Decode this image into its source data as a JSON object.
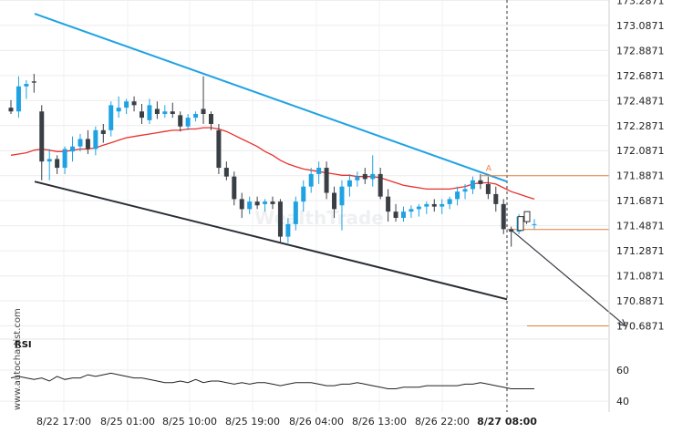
{
  "chart_data": {
    "type": "candlestick",
    "brand": "www.autochartist.com",
    "watermark": "WealthTrade",
    "y_ticks": [
      "173.2871",
      "173.0871",
      "172.8871",
      "172.6871",
      "172.4871",
      "172.2871",
      "172.0871",
      "171.8871",
      "171.6871",
      "171.4871",
      "171.2871",
      "171.0871",
      "170.8871",
      "170.6871"
    ],
    "x_ticks": [
      "8/22 17:00",
      "8/25 01:00",
      "8/25 10:00",
      "8/25 19:00",
      "8/26 04:00",
      "8/26 13:00",
      "8/26 22:00",
      "8/27 08:00"
    ],
    "price_range": [
      170.64,
      173.29
    ],
    "rsi": {
      "title": "RSI",
      "ticks": [
        "60",
        "40"
      ],
      "range": [
        33,
        80
      ]
    },
    "levels": {
      "resistance": 171.8871,
      "current": 171.4571,
      "target": 170.6871
    },
    "point_label": "A",
    "colors": {
      "bull": "#1ea2e3",
      "bear": "#3a3f46",
      "ma": "#e8312d",
      "upper_trend": "#1ea2e3",
      "lower_trend": "#2a2f35",
      "level": "#e97c3c",
      "arrow": "#3a3f46",
      "rsi": "#222222"
    },
    "candles": [
      [
        172.43,
        172.49,
        172.38,
        172.4
      ],
      [
        172.4,
        172.68,
        172.35,
        172.6
      ],
      [
        172.6,
        172.65,
        172.5,
        172.62
      ],
      [
        172.64,
        172.7,
        172.55,
        172.63
      ],
      [
        172.4,
        172.45,
        171.85,
        172.0
      ],
      [
        172.0,
        172.1,
        171.85,
        172.02
      ],
      [
        172.02,
        172.05,
        171.9,
        171.95
      ],
      [
        171.95,
        172.12,
        171.9,
        172.1
      ],
      [
        172.08,
        172.2,
        172.0,
        172.12
      ],
      [
        172.12,
        172.22,
        172.08,
        172.18
      ],
      [
        172.18,
        172.25,
        172.06,
        172.1
      ],
      [
        172.1,
        172.28,
        172.05,
        172.25
      ],
      [
        172.25,
        172.3,
        172.15,
        172.22
      ],
      [
        172.25,
        172.48,
        172.2,
        172.45
      ],
      [
        172.4,
        172.52,
        172.35,
        172.43
      ],
      [
        172.43,
        172.5,
        172.38,
        172.48
      ],
      [
        172.48,
        172.52,
        172.4,
        172.45
      ],
      [
        172.4,
        172.46,
        172.3,
        172.35
      ],
      [
        172.33,
        172.5,
        172.3,
        172.45
      ],
      [
        172.42,
        172.48,
        172.34,
        172.38
      ],
      [
        172.38,
        172.45,
        172.35,
        172.4
      ],
      [
        172.4,
        172.47,
        172.35,
        172.38
      ],
      [
        172.37,
        172.4,
        172.24,
        172.28
      ],
      [
        172.28,
        172.38,
        172.25,
        172.35
      ],
      [
        172.35,
        172.4,
        172.32,
        172.38
      ],
      [
        172.42,
        172.68,
        172.3,
        172.38
      ],
      [
        172.38,
        172.4,
        172.25,
        172.3
      ],
      [
        172.25,
        172.3,
        171.9,
        171.95
      ],
      [
        171.95,
        172.0,
        171.85,
        171.88
      ],
      [
        171.88,
        171.92,
        171.65,
        171.7
      ],
      [
        171.7,
        171.75,
        171.55,
        171.62
      ],
      [
        171.62,
        171.72,
        171.58,
        171.68
      ],
      [
        171.68,
        171.72,
        171.62,
        171.65
      ],
      [
        171.66,
        171.7,
        171.6,
        171.68
      ],
      [
        171.68,
        171.72,
        171.62,
        171.66
      ],
      [
        171.68,
        171.7,
        171.35,
        171.4
      ],
      [
        171.4,
        171.55,
        171.35,
        171.5
      ],
      [
        171.5,
        171.72,
        171.45,
        171.68
      ],
      [
        171.68,
        171.85,
        171.6,
        171.8
      ],
      [
        171.8,
        171.95,
        171.75,
        171.9
      ],
      [
        171.9,
        172.0,
        171.82,
        171.95
      ],
      [
        171.95,
        172.0,
        171.7,
        171.75
      ],
      [
        171.75,
        171.8,
        171.55,
        171.62
      ],
      [
        171.65,
        171.85,
        171.45,
        171.8
      ],
      [
        171.8,
        171.9,
        171.72,
        171.85
      ],
      [
        171.85,
        171.92,
        171.8,
        171.88
      ],
      [
        171.9,
        171.95,
        171.82,
        171.86
      ],
      [
        171.86,
        172.05,
        171.8,
        171.9
      ],
      [
        171.9,
        171.95,
        171.7,
        171.72
      ],
      [
        171.72,
        171.78,
        171.52,
        171.6
      ],
      [
        171.6,
        171.66,
        171.52,
        171.55
      ],
      [
        171.55,
        171.64,
        171.52,
        171.6
      ],
      [
        171.6,
        171.65,
        171.55,
        171.62
      ],
      [
        171.62,
        171.66,
        171.56,
        171.64
      ],
      [
        171.64,
        171.68,
        171.58,
        171.66
      ],
      [
        171.66,
        171.7,
        171.6,
        171.64
      ],
      [
        171.64,
        171.7,
        171.58,
        171.66
      ],
      [
        171.66,
        171.72,
        171.62,
        171.7
      ],
      [
        171.7,
        171.8,
        171.65,
        171.76
      ],
      [
        171.76,
        171.82,
        171.7,
        171.78
      ],
      [
        171.78,
        171.88,
        171.74,
        171.85
      ],
      [
        171.85,
        171.9,
        171.78,
        171.82
      ],
      [
        171.82,
        171.88,
        171.7,
        171.74
      ],
      [
        171.74,
        171.8,
        171.6,
        171.66
      ],
      [
        171.66,
        171.7,
        171.42,
        171.46
      ],
      [
        171.46,
        171.48,
        171.32,
        171.44
      ],
      [
        171.44,
        171.58,
        171.42,
        171.56
      ],
      [
        171.56,
        171.6,
        171.5,
        171.53
      ],
      [
        171.5,
        171.54,
        171.46,
        171.5
      ]
    ],
    "ma": [
      172.05,
      172.06,
      172.07,
      172.09,
      172.1,
      172.09,
      172.08,
      172.08,
      172.09,
      172.1,
      172.1,
      172.11,
      172.13,
      172.15,
      172.17,
      172.19,
      172.2,
      172.21,
      172.22,
      172.23,
      172.24,
      172.25,
      172.25,
      172.26,
      172.26,
      172.27,
      172.27,
      172.26,
      172.24,
      172.21,
      172.18,
      172.15,
      172.12,
      172.08,
      172.05,
      172.01,
      171.98,
      171.96,
      171.94,
      171.93,
      171.92,
      171.91,
      171.9,
      171.89,
      171.89,
      171.88,
      171.88,
      171.88,
      171.87,
      171.85,
      171.83,
      171.81,
      171.8,
      171.79,
      171.78,
      171.78,
      171.78,
      171.78,
      171.79,
      171.8,
      171.82,
      171.83,
      171.83,
      171.82,
      171.79,
      171.76,
      171.74,
      171.72,
      171.7
    ],
    "rsi_values": [
      55,
      56,
      55,
      54,
      55,
      53,
      56,
      54,
      55,
      55,
      57,
      56,
      57,
      58,
      57,
      56,
      55,
      55,
      54,
      53,
      52,
      52,
      53,
      52,
      54,
      52,
      53,
      53,
      52,
      51,
      52,
      51,
      52,
      52,
      51,
      50,
      51,
      52,
      52,
      52,
      51,
      50,
      50,
      51,
      51,
      52,
      51,
      50,
      49,
      48,
      48,
      49,
      49,
      49,
      50,
      50,
      50,
      50,
      50,
      51,
      51,
      52,
      51,
      50,
      49,
      48,
      48,
      48,
      48
    ]
  }
}
